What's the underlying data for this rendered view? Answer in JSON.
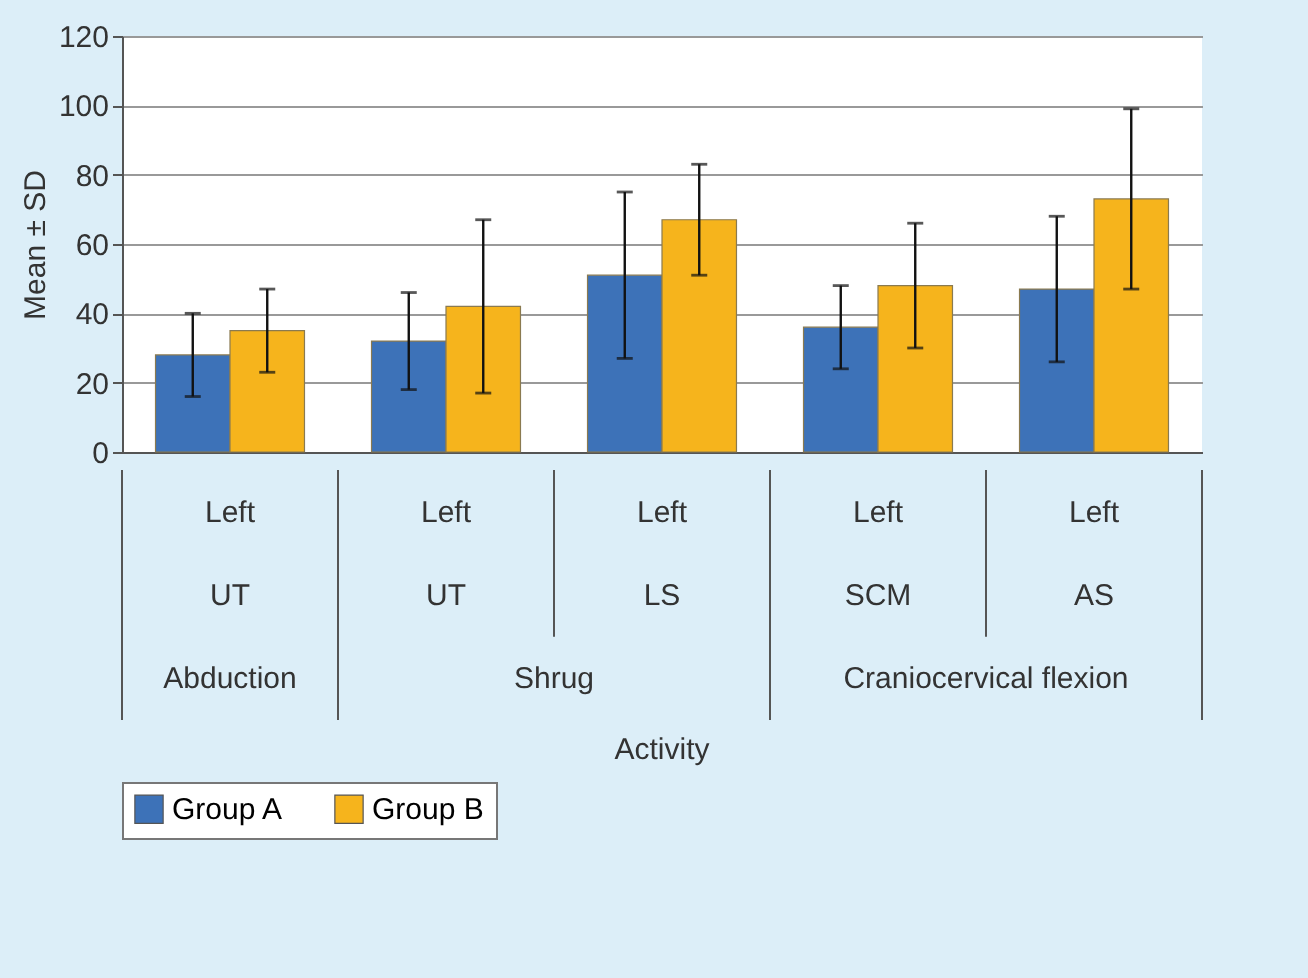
{
  "chart_data": {
    "type": "bar",
    "ylabel": "Mean ± SD",
    "categories": [
      "Left UT",
      "Left UT",
      "Left LS",
      "Left SCM",
      "Left AS"
    ],
    "series": [
      {
        "name": "Group A",
        "color": "#3d72b8",
        "values": [
          28,
          32,
          51,
          36,
          47
        ],
        "errors": [
          12,
          14,
          24,
          12,
          21
        ]
      },
      {
        "name": "Group B",
        "color": "#f6b41c",
        "values": [
          35,
          42,
          67,
          48,
          73
        ],
        "errors": [
          12,
          25,
          16,
          18,
          26
        ]
      }
    ],
    "annotations": [
      "Abduction",
      "Shrug",
      "Craniocervical flexion",
      "Activity"
    ],
    "ylim": [
      0,
      120
    ],
    "yticks": [
      0,
      20,
      40,
      60,
      80,
      100,
      120
    ],
    "grid": "y",
    "legend": "bottom"
  }
}
